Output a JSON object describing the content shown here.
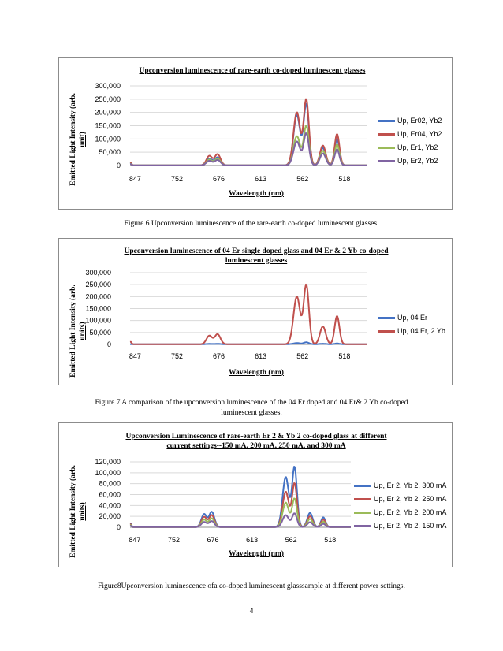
{
  "chart_data": [
    {
      "type": "line",
      "title": "Upconversion luminescence of rare-earth co-doped luminescent glasses",
      "xlabel": "Wavelength (nm)",
      "ylabel": "Emitted Light Intensity (arb. unit)",
      "x_tick_labels": [
        "847",
        "752",
        "676",
        "613",
        "562",
        "518"
      ],
      "ylim": [
        0,
        300000
      ],
      "y_ticks": [
        0,
        50000,
        100000,
        150000,
        200000,
        250000,
        300000
      ],
      "y_tick_labels": [
        "0",
        "50,000",
        "100,000",
        "150,000",
        "200,000",
        "250,000",
        "300,000"
      ],
      "grid": true,
      "legend": "right",
      "series": [
        {
          "name": "Up, Er02, Yb2",
          "color": "#4472c4",
          "peaks": [
            30000,
            190000,
            230000,
            65000,
            100000
          ]
        },
        {
          "name": "Up, Er04, Yb2",
          "color": "#c0504d",
          "peaks": [
            42000,
            200000,
            248000,
            75000,
            118000
          ]
        },
        {
          "name": "Up, Er1, Yb2",
          "color": "#9bbb59",
          "peaks": [
            25000,
            110000,
            148000,
            55000,
            78000
          ]
        },
        {
          "name": "Up, Er2, Yb2",
          "color": "#8064a2",
          "peaks": [
            20000,
            90000,
            120000,
            45000,
            60000
          ]
        }
      ]
    },
    {
      "type": "line",
      "title": "Upconversion luminescence of 04 Er single doped glass and 04 Er & 2 Yb co-doped luminescent glasses",
      "xlabel": "Wavelength (nm)",
      "ylabel": "Emitted Light Intensity (arb. units)",
      "x_tick_labels": [
        "847",
        "752",
        "676",
        "613",
        "562",
        "518"
      ],
      "ylim": [
        0,
        300000
      ],
      "y_ticks": [
        0,
        50000,
        100000,
        150000,
        200000,
        250000,
        300000
      ],
      "y_tick_labels": [
        "0",
        "50,000",
        "100,000",
        "150,000",
        "200,000",
        "250,000",
        "300,000"
      ],
      "grid": true,
      "legend": "right",
      "series": [
        {
          "name": "Up, 04 Er",
          "color": "#4472c4",
          "peaks": [
            1500,
            5000,
            8000,
            2000,
            3000
          ]
        },
        {
          "name": "Up, 04 Er, 2 Yb",
          "color": "#c0504d",
          "peaks": [
            42000,
            200000,
            248000,
            75000,
            118000
          ]
        }
      ]
    },
    {
      "type": "line",
      "title": "Upconversion Luminescence of rare-earth Er 2 & Yb 2 co-doped glass at different current settings--150 mA, 200 mA, 250 mA, and 300 mA",
      "xlabel": "Wavelength (nm)",
      "ylabel": "Emitted Light Intensity (arb. units)",
      "x_tick_labels": [
        "847",
        "752",
        "676",
        "613",
        "562",
        "518"
      ],
      "ylim": [
        0,
        120000
      ],
      "y_ticks": [
        0,
        20000,
        40000,
        60000,
        80000,
        100000,
        120000
      ],
      "y_tick_labels": [
        "0",
        "20,000",
        "40,000",
        "60,000",
        "80,000",
        "100,000",
        "120,000"
      ],
      "grid": true,
      "legend": "right",
      "series": [
        {
          "name": "Up, Er 2, Yb 2, 300 mA",
          "color": "#4472c4",
          "peaks": [
            28000,
            92000,
            110000,
            26000,
            18000
          ]
        },
        {
          "name": "Up, Er 2, Yb 2, 250 mA",
          "color": "#c0504d",
          "peaks": [
            22000,
            65000,
            80000,
            20000,
            14000
          ]
        },
        {
          "name": "Up, Er 2, Yb 2, 200 mA",
          "color": "#9bbb59",
          "peaks": [
            16000,
            45000,
            52000,
            15000,
            10000
          ]
        },
        {
          "name": "Up, Er 2, Yb 2, 150 mA",
          "color": "#8064a2",
          "peaks": [
            11000,
            22000,
            25000,
            9000,
            6000
          ]
        }
      ]
    }
  ],
  "captions": {
    "fig6": "Figure 6 Upconversion luminescence of the rare-earth co-doped luminescent glasses.",
    "fig7_line1": "Figure 7 A comparison of the upconversion luminescence of the 04 Er doped and 04 Er& 2 Yb co-doped",
    "fig7_line2": "luminescent glasses.",
    "fig8": "Figure8Upconversion luminescence ofa co-doped luminescent glasssample at different power settings."
  },
  "page_number": "4",
  "chart_titles": {
    "c1": "Upconversion luminescence of rare-earth co-doped luminescent glasses",
    "c2_line1": "Upconversion luminescence of 04 Er single doped glass and 04 Er & 2 Yb co-doped",
    "c2_line2": "luminescent glasses",
    "c3_line1": "Upconversion Luminescence of rare-earth Er 2 & Yb 2 co-doped glass at different",
    "c3_line2": "current settings--150 mA, 200 mA, 250 mA, and 300 mA"
  },
  "y_labels": {
    "c1_line1": "Emitted Light Intensity (arb.",
    "c1_line2": "unit)",
    "c2_line1": "Emitted Light Intensity (arb.",
    "c2_line2": "units)",
    "c3_line1": "Emitted Light Intensity (arb.",
    "c3_line2": "units)"
  }
}
